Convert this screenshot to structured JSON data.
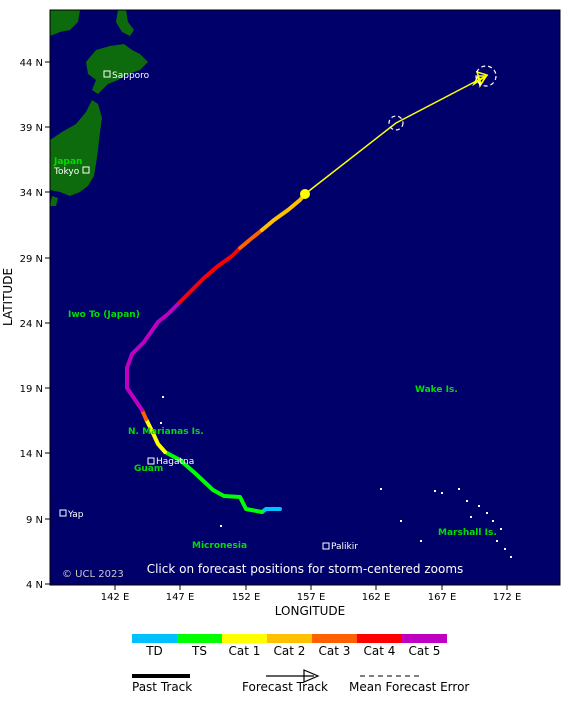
{
  "map": {
    "axis": {
      "xlabel": "LONGITUDE",
      "ylabel": "LATITUDE",
      "x_ticks": [
        "142 E",
        "147 E",
        "152 E",
        "157 E",
        "162 E",
        "167 E",
        "172 E"
      ],
      "y_ticks": [
        "44 N",
        "39 N",
        "34 N",
        "29 N",
        "24 N",
        "19 N",
        "14 N",
        "9 N",
        "4 N"
      ]
    },
    "places": {
      "sapporo": "Sapporo",
      "tokyo": "Tokyo",
      "japan": "Japan",
      "iwo_to": "Iwo To (Japan)",
      "wake": "Wake Is.",
      "marianas": "N. Marianas Is.",
      "hagatna": "Hagatna",
      "guam": "Guam",
      "yap": "Yap",
      "micronesia": "Micronesia",
      "palikir": "Palikir",
      "marshall": "Marshall Is."
    },
    "copyright": "© UCL 2023",
    "instruction": "Click on forecast positions for storm-centered zooms",
    "colors": {
      "ocean": "#00006b",
      "land": "#0d6b0d",
      "td": "#00c0ff",
      "ts": "#00ff00",
      "cat1": "#ffff00",
      "cat2": "#ffc000",
      "cat3": "#ff6000",
      "cat4": "#ff0000",
      "cat5": "#c000c0",
      "forecast": "#ffff00"
    }
  },
  "legend": {
    "scale": [
      {
        "label": "TD",
        "color": "#00c0ff"
      },
      {
        "label": "TS",
        "color": "#00ff00"
      },
      {
        "label": "Cat 1",
        "color": "#ffff00"
      },
      {
        "label": "Cat 2",
        "color": "#ffc000"
      },
      {
        "label": "Cat 3",
        "color": "#ff6000"
      },
      {
        "label": "Cat 4",
        "color": "#ff0000"
      },
      {
        "label": "Cat 5",
        "color": "#c000c0"
      }
    ],
    "past_track": "Past Track",
    "forecast_track": "Forecast Track",
    "mean_error": "Mean Forecast Error"
  }
}
